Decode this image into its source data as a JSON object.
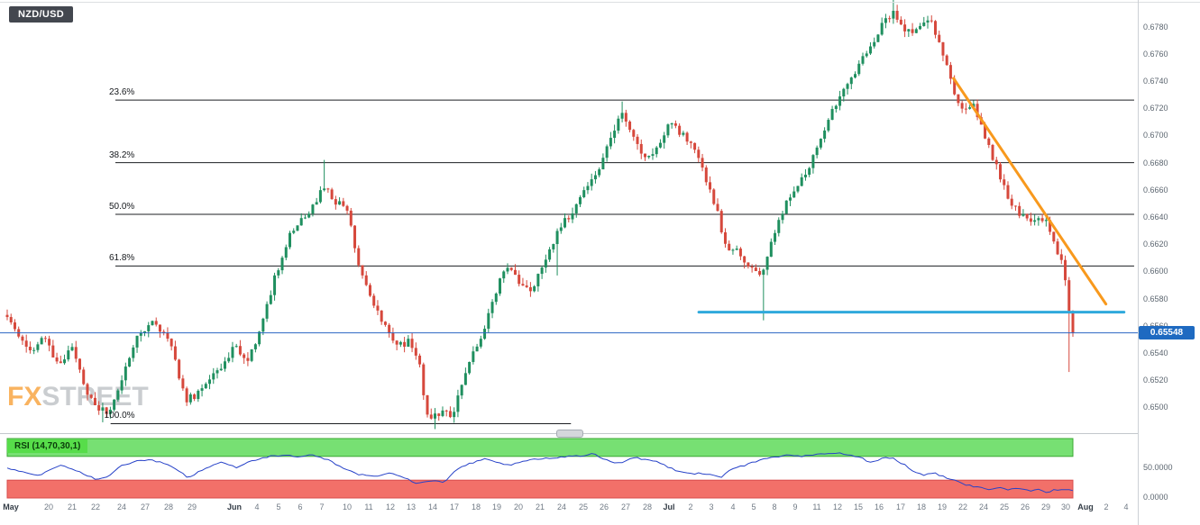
{
  "window": {
    "symbol": "NZD/USD"
  },
  "watermark": {
    "fx": "FX",
    "street": "STREET"
  },
  "price_axis": {
    "ticks": [
      "0.6780",
      "0.6760",
      "0.6740",
      "0.6720",
      "0.6700",
      "0.6680",
      "0.6660",
      "0.6640",
      "0.6620",
      "0.6600",
      "0.6580",
      "0.6560",
      "0.6540",
      "0.6520",
      "0.6500"
    ],
    "current_price": "0.65548"
  },
  "chart_data": {
    "type": "candlestick",
    "title": "NZD/USD",
    "ylim": [
      0.6483,
      0.6797
    ],
    "candle_count": 280,
    "last_price": 0.65548,
    "colors": {
      "bull": "#1f8f5f",
      "bear": "#d6483c",
      "fib": "#1c1f23",
      "rsi_line": "#2742c8",
      "band_green": "#77e073",
      "band_green_edge": "#3aa832",
      "band_red": "#f27069",
      "band_red_edge": "#d84c4c",
      "support": "#2fa9dc",
      "trend": "#f8991d",
      "price_line": "#2b66c2"
    },
    "price_path": [
      [
        0,
        0.6568
      ],
      [
        0.01,
        0.6555
      ],
      [
        0.023,
        0.654
      ],
      [
        0.036,
        0.6552
      ],
      [
        0.048,
        0.653
      ],
      [
        0.061,
        0.6545
      ],
      [
        0.074,
        0.6512
      ],
      [
        0.086,
        0.65
      ],
      [
        0.095,
        0.6494
      ],
      [
        0.107,
        0.652
      ],
      [
        0.12,
        0.655
      ],
      [
        0.137,
        0.6562
      ],
      [
        0.154,
        0.6548
      ],
      [
        0.167,
        0.6505
      ],
      [
        0.179,
        0.651
      ],
      [
        0.196,
        0.6525
      ],
      [
        0.213,
        0.6545
      ],
      [
        0.226,
        0.6536
      ],
      [
        0.239,
        0.656
      ],
      [
        0.251,
        0.6595
      ],
      [
        0.264,
        0.6625
      ],
      [
        0.277,
        0.6638
      ],
      [
        0.289,
        0.6652
      ],
      [
        0.298,
        0.6662
      ],
      [
        0.308,
        0.6652
      ],
      [
        0.319,
        0.6645
      ],
      [
        0.33,
        0.6605
      ],
      [
        0.342,
        0.6578
      ],
      [
        0.355,
        0.656
      ],
      [
        0.367,
        0.6545
      ],
      [
        0.378,
        0.6549
      ],
      [
        0.387,
        0.653
      ],
      [
        0.395,
        0.649
      ],
      [
        0.408,
        0.6498
      ],
      [
        0.418,
        0.6492
      ],
      [
        0.429,
        0.6525
      ],
      [
        0.442,
        0.6548
      ],
      [
        0.454,
        0.6572
      ],
      [
        0.463,
        0.6598
      ],
      [
        0.471,
        0.6606
      ],
      [
        0.482,
        0.659
      ],
      [
        0.492,
        0.6586
      ],
      [
        0.505,
        0.6606
      ],
      [
        0.516,
        0.663
      ],
      [
        0.528,
        0.6641
      ],
      [
        0.541,
        0.6658
      ],
      [
        0.553,
        0.667
      ],
      [
        0.565,
        0.6695
      ],
      [
        0.577,
        0.6716
      ],
      [
        0.587,
        0.67
      ],
      [
        0.598,
        0.6682
      ],
      [
        0.609,
        0.669
      ],
      [
        0.621,
        0.6708
      ],
      [
        0.632,
        0.6702
      ],
      [
        0.643,
        0.6694
      ],
      [
        0.655,
        0.6668
      ],
      [
        0.666,
        0.6645
      ],
      [
        0.674,
        0.6618
      ],
      [
        0.685,
        0.6615
      ],
      [
        0.697,
        0.6602
      ],
      [
        0.708,
        0.6597
      ],
      [
        0.719,
        0.6625
      ],
      [
        0.731,
        0.6652
      ],
      [
        0.742,
        0.6665
      ],
      [
        0.753,
        0.6678
      ],
      [
        0.765,
        0.67
      ],
      [
        0.776,
        0.6722
      ],
      [
        0.787,
        0.6735
      ],
      [
        0.799,
        0.675
      ],
      [
        0.81,
        0.6766
      ],
      [
        0.822,
        0.6782
      ],
      [
        0.832,
        0.6792
      ],
      [
        0.844,
        0.6775
      ],
      [
        0.854,
        0.678
      ],
      [
        0.865,
        0.6786
      ],
      [
        0.875,
        0.6768
      ],
      [
        0.886,
        0.6738
      ],
      [
        0.897,
        0.6716
      ],
      [
        0.907,
        0.6722
      ],
      [
        0.917,
        0.67
      ],
      [
        0.928,
        0.6678
      ],
      [
        0.939,
        0.6655
      ],
      [
        0.951,
        0.6642
      ],
      [
        0.962,
        0.6636
      ],
      [
        0.973,
        0.664
      ],
      [
        0.983,
        0.662
      ],
      [
        0.99,
        0.6604
      ],
      [
        0.995,
        0.6588
      ],
      [
        0.998,
        0.6552
      ],
      [
        1,
        0.65548
      ]
    ],
    "wick_events": [
      [
        0.09,
        0.6489
      ],
      [
        0.298,
        0.6682
      ],
      [
        0.4,
        0.6484
      ],
      [
        0.516,
        0.6597
      ],
      [
        0.577,
        0.6725
      ],
      [
        0.708,
        0.6564
      ],
      [
        0.832,
        0.68
      ],
      [
        0.997,
        0.6526
      ]
    ],
    "fib_levels": [
      {
        "label": "23.6%",
        "price": 0.6726
      },
      {
        "label": "38.2%",
        "price": 0.668
      },
      {
        "label": "50.0%",
        "price": 0.6642
      },
      {
        "label": "61.8%",
        "price": 0.6604
      },
      {
        "label": "100.0%",
        "price": 0.6488,
        "f_start": 0.097,
        "f_end": 0.529
      }
    ],
    "annotations": {
      "support_line": {
        "price": 0.657,
        "f_start": 0.649,
        "f_end": 1.048
      },
      "trendline": {
        "f1": 0.888,
        "p1": 0.6742,
        "f2": 1.031,
        "p2": 0.6576
      },
      "current_price_line": {
        "price": 0.65548
      }
    },
    "rsi": {
      "label": "RSI (14,70,30,1)",
      "upper": 70,
      "lower": 30,
      "axis_ticks": [
        [
          "50.0000",
          50
        ],
        [
          "0.0000",
          0
        ]
      ],
      "path": [
        [
          0,
          50
        ],
        [
          0.01,
          45
        ],
        [
          0.03,
          38
        ],
        [
          0.05,
          55
        ],
        [
          0.07,
          42
        ],
        [
          0.085,
          30
        ],
        [
          0.095,
          35
        ],
        [
          0.105,
          52
        ],
        [
          0.12,
          62
        ],
        [
          0.135,
          64
        ],
        [
          0.15,
          58
        ],
        [
          0.16,
          45
        ],
        [
          0.17,
          35
        ],
        [
          0.185,
          48
        ],
        [
          0.2,
          60
        ],
        [
          0.215,
          52
        ],
        [
          0.23,
          62
        ],
        [
          0.245,
          70
        ],
        [
          0.26,
          72
        ],
        [
          0.275,
          70
        ],
        [
          0.285,
          73
        ],
        [
          0.3,
          65
        ],
        [
          0.315,
          50
        ],
        [
          0.33,
          40
        ],
        [
          0.345,
          35
        ],
        [
          0.36,
          42
        ],
        [
          0.37,
          35
        ],
        [
          0.385,
          25
        ],
        [
          0.4,
          30
        ],
        [
          0.41,
          27
        ],
        [
          0.42,
          45
        ],
        [
          0.43,
          55
        ],
        [
          0.44,
          62
        ],
        [
          0.45,
          66
        ],
        [
          0.46,
          60
        ],
        [
          0.47,
          55
        ],
        [
          0.48,
          60
        ],
        [
          0.49,
          65
        ],
        [
          0.51,
          68
        ],
        [
          0.53,
          70
        ],
        [
          0.55,
          74
        ],
        [
          0.56,
          65
        ],
        [
          0.57,
          58
        ],
        [
          0.58,
          62
        ],
        [
          0.59,
          68
        ],
        [
          0.6,
          64
        ],
        [
          0.61,
          60
        ],
        [
          0.62,
          52
        ],
        [
          0.63,
          45
        ],
        [
          0.64,
          40
        ],
        [
          0.65,
          42
        ],
        [
          0.66,
          38
        ],
        [
          0.67,
          35
        ],
        [
          0.68,
          48
        ],
        [
          0.7,
          60
        ],
        [
          0.71,
          65
        ],
        [
          0.72,
          68
        ],
        [
          0.73,
          72
        ],
        [
          0.74,
          70
        ],
        [
          0.76,
          73
        ],
        [
          0.78,
          75
        ],
        [
          0.79,
          72
        ],
        [
          0.8,
          68
        ],
        [
          0.81,
          60
        ],
        [
          0.82,
          66
        ],
        [
          0.83,
          68
        ],
        [
          0.84,
          58
        ],
        [
          0.85,
          45
        ],
        [
          0.86,
          38
        ],
        [
          0.87,
          42
        ],
        [
          0.88,
          35
        ],
        [
          0.89,
          28
        ],
        [
          0.9,
          22
        ],
        [
          0.91,
          18
        ],
        [
          0.92,
          15
        ],
        [
          0.93,
          18
        ],
        [
          0.94,
          14
        ],
        [
          0.95,
          16
        ],
        [
          0.96,
          12
        ],
        [
          0.965,
          15
        ],
        [
          0.975,
          10
        ],
        [
          0.985,
          14
        ],
        [
          1,
          12
        ]
      ]
    },
    "time_axis": [
      [
        "May",
        12,
        1
      ],
      [
        "20",
        54,
        0
      ],
      [
        "21",
        80,
        0
      ],
      [
        "22",
        106,
        0
      ],
      [
        "24",
        135,
        0
      ],
      [
        "27",
        161,
        0
      ],
      [
        "28",
        187,
        0
      ],
      [
        "29",
        213,
        0
      ],
      [
        "Jun",
        260,
        1
      ],
      [
        "4",
        285,
        0
      ],
      [
        "5",
        309,
        0
      ],
      [
        "6",
        333,
        0
      ],
      [
        "7",
        357,
        0
      ],
      [
        "10",
        385,
        0
      ],
      [
        "11",
        409,
        0
      ],
      [
        "12",
        433,
        0
      ],
      [
        "13",
        456,
        0
      ],
      [
        "14",
        480,
        0
      ],
      [
        "17",
        504,
        0
      ],
      [
        "18",
        528,
        0
      ],
      [
        "19",
        551,
        0
      ],
      [
        "20",
        575,
        0
      ],
      [
        "21",
        599,
        0
      ],
      [
        "24",
        623,
        0
      ],
      [
        "25",
        647,
        0
      ],
      [
        "26",
        670,
        0
      ],
      [
        "27",
        694,
        0
      ],
      [
        "28",
        718,
        0
      ],
      [
        "Jul",
        742,
        1
      ],
      [
        "2",
        766,
        0
      ],
      [
        "3",
        789,
        0
      ],
      [
        "4",
        813,
        0
      ],
      [
        "5",
        836,
        0
      ],
      [
        "8",
        859,
        0
      ],
      [
        "9",
        882,
        0
      ],
      [
        "11",
        906,
        0
      ],
      [
        "12",
        929,
        0
      ],
      [
        "15",
        952,
        0
      ],
      [
        "16",
        975,
        0
      ],
      [
        "17",
        999,
        0
      ],
      [
        "18",
        1022,
        0
      ],
      [
        "19",
        1045,
        0
      ],
      [
        "22",
        1068,
        0
      ],
      [
        "24",
        1091,
        0
      ],
      [
        "25",
        1114,
        0
      ],
      [
        "26",
        1137,
        0
      ],
      [
        "29",
        1160,
        0
      ],
      [
        "30",
        1182,
        0
      ],
      [
        "Aug",
        1204,
        1
      ],
      [
        "2",
        1227,
        0
      ],
      [
        "4",
        1249,
        0
      ]
    ]
  }
}
